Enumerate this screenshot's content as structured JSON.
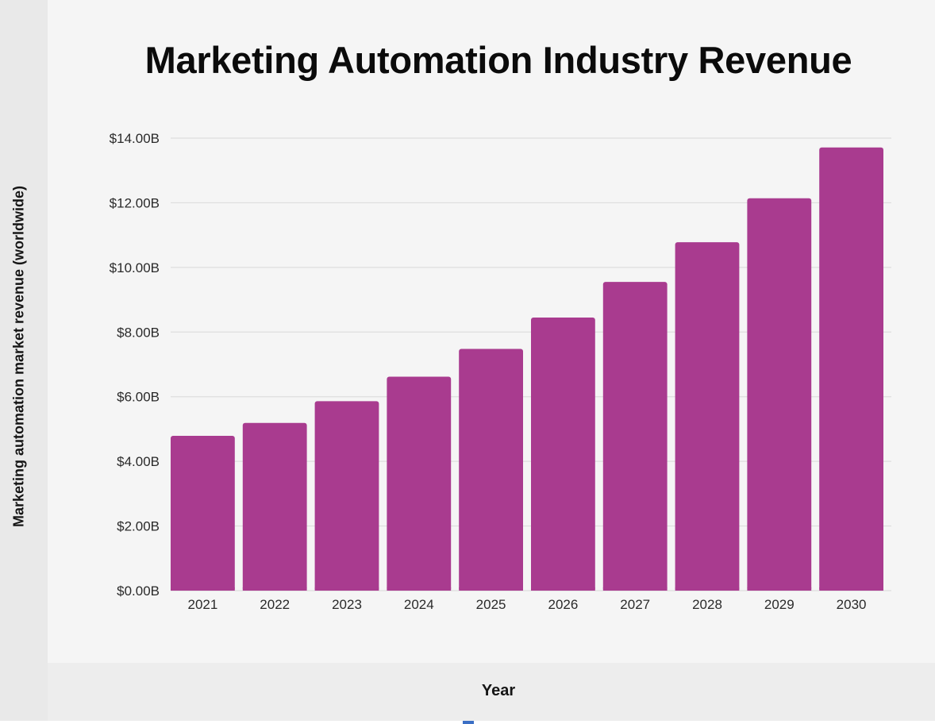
{
  "chart_data": {
    "type": "bar",
    "title": "Marketing Automation Industry Revenue",
    "xlabel": "Year",
    "ylabel": "Marketing automation market revenue (worldwide)",
    "categories": [
      "2021",
      "2022",
      "2023",
      "2024",
      "2025",
      "2026",
      "2027",
      "2028",
      "2029",
      "2030"
    ],
    "values": [
      4.79,
      5.19,
      5.86,
      6.62,
      7.48,
      8.45,
      9.55,
      10.78,
      12.14,
      13.71
    ],
    "value_unit": "billion USD",
    "ylim": [
      0,
      14
    ],
    "yticks": [
      0,
      2,
      4,
      6,
      8,
      10,
      12,
      14
    ],
    "ytick_labels": [
      "$0.00B",
      "$2.00B",
      "$4.00B",
      "$6.00B",
      "$8.00B",
      "$10.00B",
      "$12.00B",
      "$14.00B"
    ],
    "grid": true,
    "legend": "none",
    "colors": {
      "bar": "#a93b8f",
      "grid": "#dedede",
      "plot_background": "#f5f5f5"
    }
  }
}
